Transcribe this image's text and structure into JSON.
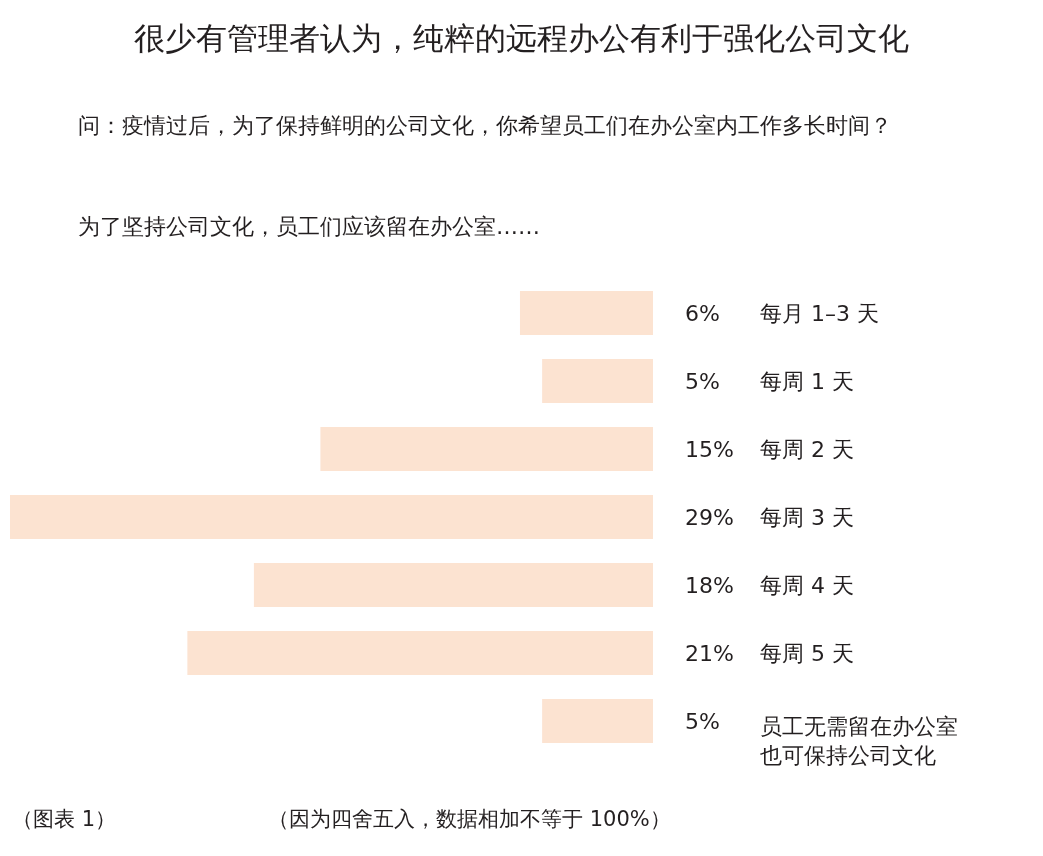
{
  "chart_data": {
    "type": "bar",
    "orientation": "horizontal",
    "title": "很少有管理者认为，纯粹的远程办公有利于强化公司文化",
    "subtitle": "问：疫情过后，为了保持鲜明的公司文化，你希望员工们在办公室内工作多长时间？",
    "ylabel": "为了坚持公司文化，员工们应该留在办公室……",
    "categories": [
      "每月 1–3 天",
      "每周 1 天",
      "每周 2 天",
      "每周 3 天",
      "每周 4 天",
      "每周 5 天",
      "员工无需留在办公室也可保持公司文化"
    ],
    "values": [
      6,
      5,
      15,
      29,
      18,
      21,
      5
    ],
    "value_labels": [
      "6%",
      "5%",
      "15%",
      "29%",
      "18%",
      "21%",
      "5%"
    ],
    "color": "#fce3d1",
    "xlim": [
      29,
      0
    ],
    "tick_labels": false,
    "grid": false,
    "legend": false,
    "annotations": [
      "（图表 1）",
      "（因为四舍五入，数据相加不等于 100%）"
    ]
  }
}
